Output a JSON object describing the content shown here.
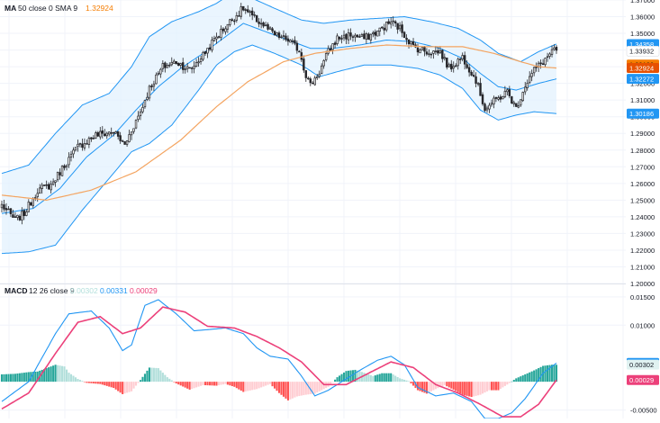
{
  "legend_main": {
    "label": "MA",
    "params": "50 close 0 SMA 9",
    "value": "1.32924",
    "value_color": "#f57c00"
  },
  "legend_macd": {
    "label": "MACD",
    "params": "12 26 close 9",
    "v_hist": "0.00302",
    "v_macd": "0.00331",
    "v_signal": "0.00029",
    "hist_color": "#b2dfdb",
    "macd_color": "#2196f3",
    "signal_color": "#ec407a"
  },
  "colors": {
    "up": "#26a69a",
    "down": "#ef5350",
    "candle": "#26262a",
    "band_line": "#2196f3",
    "band_fill": "#e3f2fd",
    "ma": "#f4a460",
    "grid": "#f0f3fa",
    "axis_text": "#131722"
  },
  "price_axis": {
    "ticks": [
      "1.37000",
      "1.36000",
      "1.35000",
      "1.34000",
      "1.33000",
      "1.32000",
      "1.31000",
      "1.30000",
      "1.29000",
      "1.28000",
      "1.27000",
      "1.26000",
      "1.25000",
      "1.24000",
      "1.23000",
      "1.22000",
      "1.21000",
      "1.20000"
    ],
    "badges": [
      {
        "text": "1.34358",
        "bg": "#2196f3",
        "fg": "#ffffff",
        "value": 1.34358
      },
      {
        "text": "1.33932",
        "bg": "#ffffff",
        "fg": "#131722",
        "value": 1.33932
      },
      {
        "text": "1.33130",
        "bg": "#f57c00",
        "fg": "#131722",
        "value": 1.3313
      },
      {
        "text": "1.32924",
        "bg": "#e65100",
        "fg": "#ffffff",
        "value": 1.32924
      },
      {
        "text": "1.32272",
        "bg": "#2196f3",
        "fg": "#ffffff",
        "value": 1.32272
      },
      {
        "text": "1.30186",
        "bg": "#2196f3",
        "fg": "#ffffff",
        "value": 1.30186
      }
    ]
  },
  "macd_axis": {
    "ticks": [
      "0.01500",
      "0.01000",
      "-0.00500"
    ],
    "badges": [
      {
        "text": "0.00331",
        "bg": "#2196f3",
        "fg": "#ffffff",
        "value": 0.00331
      },
      {
        "text": "0.00302",
        "bg": "#e0f2f1",
        "fg": "#131722",
        "value": 0.00302
      },
      {
        "text": "0.00029",
        "bg": "#ec407a",
        "fg": "#ffffff",
        "value": 0.00029
      }
    ]
  },
  "chart_data": [
    {
      "type": "candlestick",
      "ylim": [
        1.2,
        1.37
      ],
      "close_keypoints": [
        [
          0,
          1.247
        ],
        [
          6,
          1.238
        ],
        [
          10,
          1.242
        ],
        [
          16,
          1.256
        ],
        [
          22,
          1.259
        ],
        [
          28,
          1.271
        ],
        [
          34,
          1.282
        ],
        [
          42,
          1.289
        ],
        [
          50,
          1.291
        ],
        [
          55,
          1.283
        ],
        [
          58,
          1.292
        ],
        [
          62,
          1.303
        ],
        [
          66,
          1.317
        ],
        [
          72,
          1.33
        ],
        [
          78,
          1.333
        ],
        [
          84,
          1.328
        ],
        [
          90,
          1.337
        ],
        [
          96,
          1.348
        ],
        [
          102,
          1.357
        ],
        [
          108,
          1.365
        ],
        [
          112,
          1.36
        ],
        [
          116,
          1.356
        ],
        [
          122,
          1.349
        ],
        [
          128,
          1.346
        ],
        [
          133,
          1.34
        ],
        [
          136,
          1.325
        ],
        [
          138,
          1.319
        ],
        [
          142,
          1.327
        ],
        [
          146,
          1.339
        ],
        [
          150,
          1.347
        ],
        [
          156,
          1.349
        ],
        [
          162,
          1.347
        ],
        [
          168,
          1.351
        ],
        [
          174,
          1.357
        ],
        [
          178,
          1.353
        ],
        [
          184,
          1.342
        ],
        [
          190,
          1.339
        ],
        [
          196,
          1.339
        ],
        [
          200,
          1.329
        ],
        [
          206,
          1.336
        ],
        [
          212,
          1.322
        ],
        [
          216,
          1.305
        ],
        [
          220,
          1.309
        ],
        [
          226,
          1.315
        ],
        [
          230,
          1.305
        ],
        [
          234,
          1.319
        ],
        [
          238,
          1.328
        ],
        [
          242,
          1.333
        ],
        [
          246,
          1.339
        ],
        [
          248,
          1.3393
        ]
      ],
      "upper_band_keypoints": [
        [
          0,
          1.266
        ],
        [
          12,
          1.271
        ],
        [
          24,
          1.29
        ],
        [
          36,
          1.307
        ],
        [
          48,
          1.314
        ],
        [
          58,
          1.33
        ],
        [
          66,
          1.348
        ],
        [
          76,
          1.357
        ],
        [
          88,
          1.363
        ],
        [
          96,
          1.368
        ],
        [
          104,
          1.375
        ],
        [
          112,
          1.371
        ],
        [
          122,
          1.365
        ],
        [
          134,
          1.358
        ],
        [
          144,
          1.356
        ],
        [
          156,
          1.358
        ],
        [
          168,
          1.359
        ],
        [
          180,
          1.36
        ],
        [
          192,
          1.357
        ],
        [
          204,
          1.353
        ],
        [
          214,
          1.346
        ],
        [
          222,
          1.338
        ],
        [
          232,
          1.333
        ],
        [
          240,
          1.339
        ],
        [
          248,
          1.3436
        ]
      ],
      "lower_band_keypoints": [
        [
          0,
          1.218
        ],
        [
          12,
          1.219
        ],
        [
          24,
          1.223
        ],
        [
          36,
          1.244
        ],
        [
          48,
          1.263
        ],
        [
          58,
          1.279
        ],
        [
          66,
          1.284
        ],
        [
          76,
          1.295
        ],
        [
          88,
          1.316
        ],
        [
          96,
          1.331
        ],
        [
          104,
          1.339
        ],
        [
          112,
          1.343
        ],
        [
          122,
          1.338
        ],
        [
          134,
          1.331
        ],
        [
          142,
          1.324
        ],
        [
          150,
          1.327
        ],
        [
          162,
          1.331
        ],
        [
          174,
          1.331
        ],
        [
          186,
          1.329
        ],
        [
          196,
          1.325
        ],
        [
          206,
          1.317
        ],
        [
          214,
          1.304
        ],
        [
          222,
          1.298
        ],
        [
          230,
          1.301
        ],
        [
          238,
          1.303
        ],
        [
          248,
          1.3019
        ]
      ],
      "basis_keypoints": [
        [
          0,
          1.242
        ],
        [
          14,
          1.245
        ],
        [
          26,
          1.257
        ],
        [
          38,
          1.276
        ],
        [
          50,
          1.289
        ],
        [
          60,
          1.304
        ],
        [
          70,
          1.318
        ],
        [
          80,
          1.329
        ],
        [
          90,
          1.338
        ],
        [
          100,
          1.348
        ],
        [
          108,
          1.356
        ],
        [
          116,
          1.352
        ],
        [
          128,
          1.346
        ],
        [
          138,
          1.341
        ],
        [
          148,
          1.341
        ],
        [
          160,
          1.343
        ],
        [
          172,
          1.346
        ],
        [
          184,
          1.345
        ],
        [
          196,
          1.341
        ],
        [
          206,
          1.335
        ],
        [
          214,
          1.326
        ],
        [
          222,
          1.318
        ],
        [
          230,
          1.316
        ],
        [
          240,
          1.32
        ],
        [
          248,
          1.3227
        ]
      ],
      "ma_keypoints": [
        [
          0,
          1.253
        ],
        [
          20,
          1.25
        ],
        [
          40,
          1.256
        ],
        [
          60,
          1.267
        ],
        [
          80,
          1.286
        ],
        [
          96,
          1.306
        ],
        [
          110,
          1.321
        ],
        [
          126,
          1.333
        ],
        [
          140,
          1.338
        ],
        [
          156,
          1.341
        ],
        [
          172,
          1.343
        ],
        [
          190,
          1.342
        ],
        [
          206,
          1.342
        ],
        [
          220,
          1.338
        ],
        [
          232,
          1.333
        ],
        [
          240,
          1.33
        ],
        [
          248,
          1.3292
        ]
      ],
      "bars": 249
    },
    {
      "type": "macd",
      "ylim": [
        -0.0065,
        0.0172
      ],
      "macd_keypoints": [
        [
          0,
          -0.0035
        ],
        [
          12,
          0.0
        ],
        [
          24,
          0.0085
        ],
        [
          30,
          0.012
        ],
        [
          40,
          0.0125
        ],
        [
          48,
          0.0095
        ],
        [
          54,
          0.0055
        ],
        [
          58,
          0.0065
        ],
        [
          64,
          0.0135
        ],
        [
          70,
          0.0145
        ],
        [
          78,
          0.012
        ],
        [
          86,
          0.009
        ],
        [
          92,
          0.0092
        ],
        [
          100,
          0.0095
        ],
        [
          108,
          0.0085
        ],
        [
          114,
          0.006
        ],
        [
          120,
          0.0045
        ],
        [
          128,
          0.004
        ],
        [
          134,
          0.001
        ],
        [
          140,
          -0.0025
        ],
        [
          146,
          -0.0015
        ],
        [
          154,
          0.0005
        ],
        [
          160,
          0.002
        ],
        [
          168,
          0.0038
        ],
        [
          174,
          0.0045
        ],
        [
          180,
          0.003
        ],
        [
          186,
          -0.001
        ],
        [
          194,
          -0.0025
        ],
        [
          202,
          -0.002
        ],
        [
          210,
          -0.0035
        ],
        [
          216,
          -0.0065
        ],
        [
          222,
          -0.0065
        ],
        [
          228,
          -0.0055
        ],
        [
          234,
          -0.003
        ],
        [
          242,
          0.0015
        ],
        [
          248,
          0.0033
        ]
      ],
      "signal_keypoints": [
        [
          0,
          -0.0048
        ],
        [
          12,
          -0.002
        ],
        [
          24,
          0.005
        ],
        [
          34,
          0.0105
        ],
        [
          44,
          0.0115
        ],
        [
          54,
          0.0085
        ],
        [
          62,
          0.0095
        ],
        [
          72,
          0.0132
        ],
        [
          82,
          0.0123
        ],
        [
          92,
          0.0098
        ],
        [
          104,
          0.0095
        ],
        [
          114,
          0.008
        ],
        [
          124,
          0.006
        ],
        [
          134,
          0.0035
        ],
        [
          144,
          -0.0005
        ],
        [
          154,
          -0.0005
        ],
        [
          164,
          0.0015
        ],
        [
          174,
          0.0035
        ],
        [
          184,
          0.0025
        ],
        [
          194,
          -0.0005
        ],
        [
          204,
          -0.002
        ],
        [
          214,
          -0.004
        ],
        [
          224,
          -0.0062
        ],
        [
          232,
          -0.0062
        ],
        [
          240,
          -0.004
        ],
        [
          248,
          0.0003
        ]
      ],
      "hist_keypoints": [
        [
          0,
          0.0013
        ],
        [
          6,
          0.0014
        ],
        [
          12,
          0.0017
        ],
        [
          16,
          0.0018
        ],
        [
          20,
          0.0024
        ],
        [
          24,
          0.003
        ],
        [
          28,
          0.0027
        ],
        [
          30,
          0.0016
        ],
        [
          34,
          0.0005
        ],
        [
          38,
          -0.0002
        ],
        [
          44,
          -0.0004
        ],
        [
          50,
          -0.0011
        ],
        [
          54,
          -0.0022
        ],
        [
          58,
          -0.0017
        ],
        [
          62,
          0.0003
        ],
        [
          66,
          0.0025
        ],
        [
          70,
          0.0024
        ],
        [
          74,
          0.0008
        ],
        [
          78,
          -0.0003
        ],
        [
          84,
          -0.0014
        ],
        [
          90,
          -0.0006
        ],
        [
          96,
          -0.0007
        ],
        [
          100,
          -0.0004
        ],
        [
          104,
          -0.0009
        ],
        [
          108,
          -0.0018
        ],
        [
          114,
          -0.0013
        ],
        [
          120,
          -0.0004
        ],
        [
          124,
          -0.002
        ],
        [
          128,
          -0.0033
        ],
        [
          132,
          -0.0026
        ],
        [
          136,
          -0.0023
        ],
        [
          140,
          -0.0021
        ],
        [
          146,
          -0.0009
        ],
        [
          150,
          0.0008
        ],
        [
          154,
          0.0019
        ],
        [
          158,
          0.0021
        ],
        [
          162,
          0.0016
        ],
        [
          166,
          0.001
        ],
        [
          170,
          0.0015
        ],
        [
          174,
          0.0015
        ],
        [
          178,
          0.0006
        ],
        [
          182,
          0.0001
        ],
        [
          186,
          -0.0015
        ],
        [
          190,
          -0.0021
        ],
        [
          194,
          -0.0013
        ],
        [
          198,
          -0.0006
        ],
        [
          202,
          -0.0014
        ],
        [
          206,
          -0.0023
        ],
        [
          210,
          -0.0027
        ],
        [
          214,
          -0.0023
        ],
        [
          218,
          -0.0015
        ],
        [
          222,
          -0.0015
        ],
        [
          226,
          -0.0005
        ],
        [
          230,
          0.0006
        ],
        [
          234,
          0.0013
        ],
        [
          238,
          0.002
        ],
        [
          242,
          0.0028
        ],
        [
          246,
          0.003
        ],
        [
          248,
          0.003
        ]
      ],
      "bars": 249
    }
  ]
}
